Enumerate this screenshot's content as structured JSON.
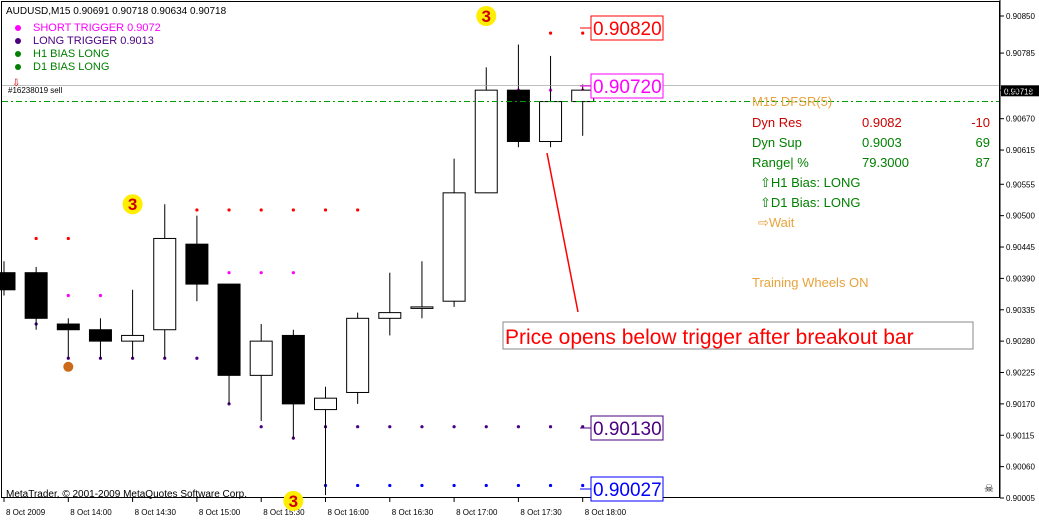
{
  "window": {
    "symbol_header": "AUDUSD,M15  0.90691 0.90718 0.90634 0.90718",
    "copyright": "MetaTrader, © 2001-2009 MetaQuotes Software Corp.",
    "order_label": "#16238019 sell"
  },
  "legend": [
    {
      "text": "SHORT TRIGGER 0.9072",
      "color": "#ff00ff",
      "bullet": "#ff00ff"
    },
    {
      "text": "LONG TRIGGER  0.9013",
      "color": "#4b0082",
      "bullet": "#4b0082"
    },
    {
      "text": "H1 BIAS LONG",
      "color": "#008000",
      "bullet": "#008000"
    },
    {
      "text": "D1 BIAS LONG",
      "color": "#008000",
      "bullet": "#008000"
    }
  ],
  "info_panel": {
    "title": "M15 DFSR(5)",
    "rows": [
      {
        "label": "Dyn Res",
        "value": "0.9082",
        "delta": "-10",
        "color": "#cc0000"
      },
      {
        "label": "Dyn Sup",
        "value": "0.9003",
        "delta": "69",
        "color": "#008000"
      },
      {
        "label": "Range| %",
        "value": "79.3000",
        "delta": "87",
        "color": "#008000"
      }
    ],
    "h1_bias": "⇧H1 Bias: LONG",
    "d1_bias": "⇧D1 Bias: LONG",
    "wait": "⇨Wait",
    "training": "Training Wheels ON"
  },
  "annotation": "Price opens below trigger after breakout bar",
  "price_boxes": [
    {
      "text": "0.90820",
      "color": "#ff0000"
    },
    {
      "text": "0.90720",
      "color": "#ff00ff"
    },
    {
      "text": "0.90130",
      "color": "#4b0082"
    },
    {
      "text": "0.90027",
      "color": "#0000ff"
    }
  ],
  "fractal_markers": [
    {
      "label": "3",
      "time_index": 15,
      "price": 0.9085
    },
    {
      "label": "3",
      "time_index": 4,
      "price": 0.9052
    },
    {
      "label": "3",
      "time_index": 9,
      "price": 0.9
    }
  ],
  "current_price_tag": "0.90718",
  "chart_data": {
    "type": "candlestick",
    "y_ticks": [
      "0.90850",
      "0.90785",
      "0.90720",
      "0.90670",
      "0.90615",
      "0.90555",
      "0.90500",
      "0.90445",
      "0.90390",
      "0.90335",
      "0.90280",
      "0.90225",
      "0.90170",
      "0.90115",
      "0.90060",
      "0.90005"
    ],
    "x_ticks": [
      {
        "label": "8 Oct 2009",
        "index": 0
      },
      {
        "label": "8 Oct 14:00",
        "index": 2
      },
      {
        "label": "8 Oct 14:30",
        "index": 4
      },
      {
        "label": "8 Oct 15:00",
        "index": 6
      },
      {
        "label": "8 Oct 15:30",
        "index": 8
      },
      {
        "label": "8 Oct 16:00",
        "index": 10
      },
      {
        "label": "8 Oct 16:30",
        "index": 12
      },
      {
        "label": "8 Oct 17:00",
        "index": 14
      },
      {
        "label": "8 Oct 17:30",
        "index": 16
      },
      {
        "label": "8 Oct 18:00",
        "index": 18
      }
    ],
    "candles": [
      {
        "o": 0.904,
        "h": 0.9042,
        "l": 0.9036,
        "c": 0.9037
      },
      {
        "o": 0.904,
        "h": 0.9041,
        "l": 0.903,
        "c": 0.9032
      },
      {
        "o": 0.9031,
        "h": 0.9032,
        "l": 0.9025,
        "c": 0.903
      },
      {
        "o": 0.903,
        "h": 0.9032,
        "l": 0.9025,
        "c": 0.9028
      },
      {
        "o": 0.9028,
        "h": 0.9037,
        "l": 0.9025,
        "c": 0.9029
      },
      {
        "o": 0.903,
        "h": 0.9052,
        "l": 0.9025,
        "c": 0.9046
      },
      {
        "o": 0.9045,
        "h": 0.905,
        "l": 0.9035,
        "c": 0.9038
      },
      {
        "o": 0.9038,
        "h": 0.9038,
        "l": 0.9017,
        "c": 0.9022
      },
      {
        "o": 0.9022,
        "h": 0.9031,
        "l": 0.9014,
        "c": 0.9028
      },
      {
        "o": 0.9029,
        "h": 0.903,
        "l": 0.9011,
        "c": 0.9017
      },
      {
        "o": 0.9016,
        "h": 0.902,
        "l": 0.9001,
        "c": 0.9018
      },
      {
        "o": 0.9019,
        "h": 0.9033,
        "l": 0.9017,
        "c": 0.9032
      },
      {
        "o": 0.9032,
        "h": 0.904,
        "l": 0.9029,
        "c": 0.9033
      },
      {
        "o": 0.9034,
        "h": 0.9042,
        "l": 0.9032,
        "c": 0.9034
      },
      {
        "o": 0.9035,
        "h": 0.906,
        "l": 0.9034,
        "c": 0.9054
      },
      {
        "o": 0.9054,
        "h": 0.9076,
        "l": 0.9054,
        "c": 0.9072
      },
      {
        "o": 0.9072,
        "h": 0.908,
        "l": 0.9062,
        "c": 0.9063
      },
      {
        "o": 0.9063,
        "h": 0.9078,
        "l": 0.9062,
        "c": 0.907
      },
      {
        "o": 0.907,
        "h": 0.9073,
        "l": 0.9064,
        "c": 0.9072
      }
    ],
    "resistance_dots": [
      null,
      0.9046,
      0.9046,
      null,
      null,
      null,
      0.9051,
      0.9051,
      0.9051,
      0.9051,
      0.9051,
      0.9051,
      null,
      null,
      null,
      null,
      null,
      0.9082,
      0.9082
    ],
    "short_trigger_dots": [
      null,
      0.9036,
      0.9036,
      0.9036,
      null,
      0.904,
      0.904,
      0.904,
      0.904,
      0.904,
      null,
      null,
      null,
      null,
      0.9049,
      0.9065,
      0.9072,
      0.9072,
      0.9072
    ],
    "long_trigger_dots": [
      null,
      0.9031,
      0.9025,
      0.9025,
      0.9025,
      0.9025,
      0.9025,
      0.9017,
      0.9013,
      0.9011,
      0.9013,
      0.9013,
      0.9013,
      0.9013,
      0.9013,
      0.9013,
      0.9013,
      0.9013,
      0.9013
    ],
    "support_dots": [
      null,
      null,
      null,
      null,
      null,
      null,
      null,
      null,
      null,
      null,
      0.90027,
      0.90027,
      0.90027,
      0.90027,
      0.90027,
      0.90027,
      0.90027,
      0.90027,
      0.90027
    ],
    "sell_line_price": 0.907,
    "current_price": 0.90718
  }
}
